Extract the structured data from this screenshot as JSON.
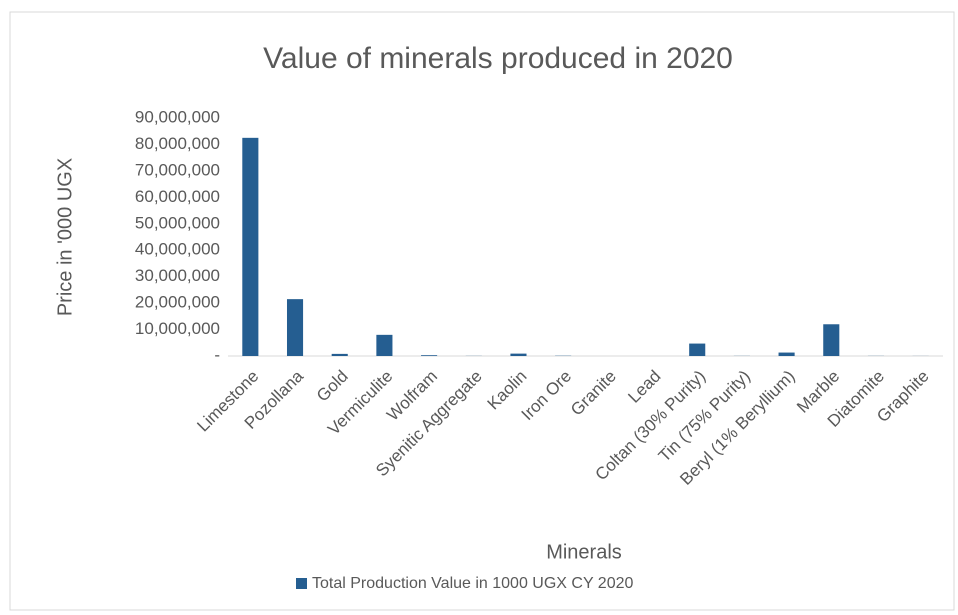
{
  "chart_data": {
    "type": "bar",
    "title": "Value of minerals produced in 2020",
    "x_label": "Minerals",
    "y_label": "Price in '000 UGX",
    "categories": [
      "Limestone",
      "Pozollana",
      "Gold",
      "Vermiculite",
      "Wolfram",
      "Syenitic Aggregate",
      "Kaolin",
      "Iron Ore",
      "Granite",
      "Lead",
      "Coltan (30% Purity)",
      "Tin (75% Purity)",
      "Beryl (1% Beryllium)",
      "Marble",
      "Diatomite",
      "Graphite"
    ],
    "series": [
      {
        "name": "Total Production Value in 1000 UGX CY 2020",
        "color": "#255e91",
        "values": [
          82500000,
          21500000,
          800000,
          8000000,
          300000,
          50000,
          900000,
          100000,
          0,
          0,
          4700000,
          50000,
          1300000,
          12000000,
          50000,
          30000
        ]
      }
    ],
    "ylim": [
      0,
      90000000
    ],
    "yticks": [
      {
        "value": 0,
        "label": "-"
      },
      {
        "value": 10000000,
        "label": "10,000,000"
      },
      {
        "value": 20000000,
        "label": "20,000,000"
      },
      {
        "value": 30000000,
        "label": "30,000,000"
      },
      {
        "value": 40000000,
        "label": "40,000,000"
      },
      {
        "value": 50000000,
        "label": "50,000,000"
      },
      {
        "value": 60000000,
        "label": "60,000,000"
      },
      {
        "value": 70000000,
        "label": "70,000,000"
      },
      {
        "value": 80000000,
        "label": "80,000,000"
      },
      {
        "value": 90000000,
        "label": "90,000,000"
      }
    ],
    "grid": false,
    "legend": "bottom"
  }
}
